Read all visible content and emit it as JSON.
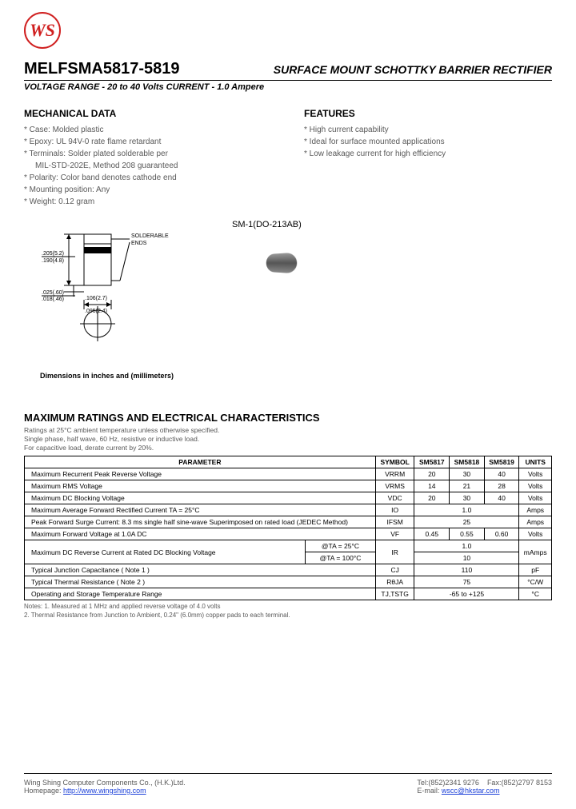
{
  "logo": {
    "text": "WS",
    "color": "#d02020"
  },
  "header": {
    "part_number": "MELFSMA5817-5819",
    "product_title": "SURFACE MOUNT SCHOTTKY BARRIER RECTIFIER",
    "subtitle": "VOLTAGE RANGE - 20 to 40 Volts CURRENT - 1.0 Ampere"
  },
  "mechanical": {
    "heading": "MECHANICAL DATA",
    "items": [
      "Case: Molded plastic",
      "Epoxy: UL 94V-0 rate flame retardant",
      "Terminals: Solder plated solderable per",
      "MIL-STD-202E, Method 208 guaranteed",
      "Polarity: Color band denotes cathode end",
      "Mounting position: Any",
      "Weight: 0.12 gram"
    ]
  },
  "features": {
    "heading": "FEATURES",
    "items": [
      "High current capability",
      "Ideal for surface mounted applications",
      "Low leakage current for high efficiency"
    ]
  },
  "package": {
    "label": "SM-1(DO-213AB)",
    "solderable_ends": "SOLDERABLE\nENDS",
    "dims": {
      "w_in_max": ".205",
      "w_mm_max": "(5.2)",
      "w_in_min": ".190",
      "w_mm_min": "(4.8)",
      "band_in_max": ".025",
      "band_mm_max": "(.60)",
      "band_in_min": ".018",
      "band_mm_min": "(.46)",
      "dia_in_max": ".106",
      "dia_mm_max": "(2.7)",
      "dia_in_min": ".095",
      "dia_mm_min": "(2.4)"
    },
    "dim_note": "Dimensions in inches and (millimeters)"
  },
  "ratings": {
    "heading": "MAXIMUM RATINGS AND ELECTRICAL CHARACTERISTICS",
    "note_lines": [
      "Ratings at 25°C ambient temperature unless otherwise specified.",
      "Single phase, half wave, 60 Hz, resistive or inductive load.",
      "For capacitive load, derate current by 20%."
    ],
    "columns": [
      "PARAMETER",
      "SYMBOL",
      "SM5817",
      "SM5818",
      "SM5819",
      "UNITS"
    ],
    "rows": [
      {
        "param": "Maximum Recurrent Peak Reverse Voltage",
        "symbol": "VRRM",
        "vals": [
          "20",
          "30",
          "40"
        ],
        "unit": "Volts"
      },
      {
        "param": "Maximum RMS Voltage",
        "symbol": "VRMS",
        "vals": [
          "14",
          "21",
          "28"
        ],
        "unit": "Volts"
      },
      {
        "param": "Maximum DC Blocking Voltage",
        "symbol": "VDC",
        "vals": [
          "20",
          "30",
          "40"
        ],
        "unit": "Volts"
      },
      {
        "param": "Maximum Average Forward Rectified Current TA = 25°C",
        "symbol": "IO",
        "span": "1.0",
        "unit": "Amps"
      },
      {
        "param": "Peak Forward Surge Current: 8.3 ms single half sine-wave Superimposed on rated load (JEDEC Method)",
        "symbol": "IFSM",
        "span": "25",
        "unit": "Amps"
      },
      {
        "param": "Maximum Forward Voltage at 1.0A DC",
        "symbol": "VF",
        "vals": [
          "0.45",
          "0.55",
          "0.60"
        ],
        "unit": "Volts"
      },
      {
        "param": "Maximum DC Reverse Current at Rated DC Blocking Voltage",
        "sub": [
          "@TA = 25°C",
          "@TA = 100°C"
        ],
        "symbol": "IR",
        "spanrows": [
          "1.0",
          "10"
        ],
        "unit": "mAmps"
      },
      {
        "param": "Typical Junction Capacitance ( Note 1 )",
        "symbol": "CJ",
        "span": "110",
        "unit": "pF"
      },
      {
        "param": "Typical Thermal Resistance ( Note 2 )",
        "symbol": "RθJA",
        "span": "75",
        "unit": "°C/W"
      },
      {
        "param": "Operating and Storage Temperature Range",
        "symbol": "TJ,TSTG",
        "span": "-65 to +125",
        "unit": "°C"
      }
    ],
    "footnotes": [
      "Notes:  1. Measured at 1 MHz and applied reverse voltage of 4.0 volts",
      "            2. Thermal Resistance from Junction to Ambient, 0.24\" (6.0mm) copper pads to each terminal."
    ]
  },
  "footer": {
    "company": "Wing Shing Computer Components Co., (H.K.)Ltd.",
    "homepage_label": "Homepage:",
    "homepage_url": "http://www.wingshing.com",
    "tel": "Tel:(852)2341 9276",
    "fax": "Fax:(852)2797 8153",
    "email_label": "E-mail:",
    "email": "wscc@hkstar.com"
  }
}
